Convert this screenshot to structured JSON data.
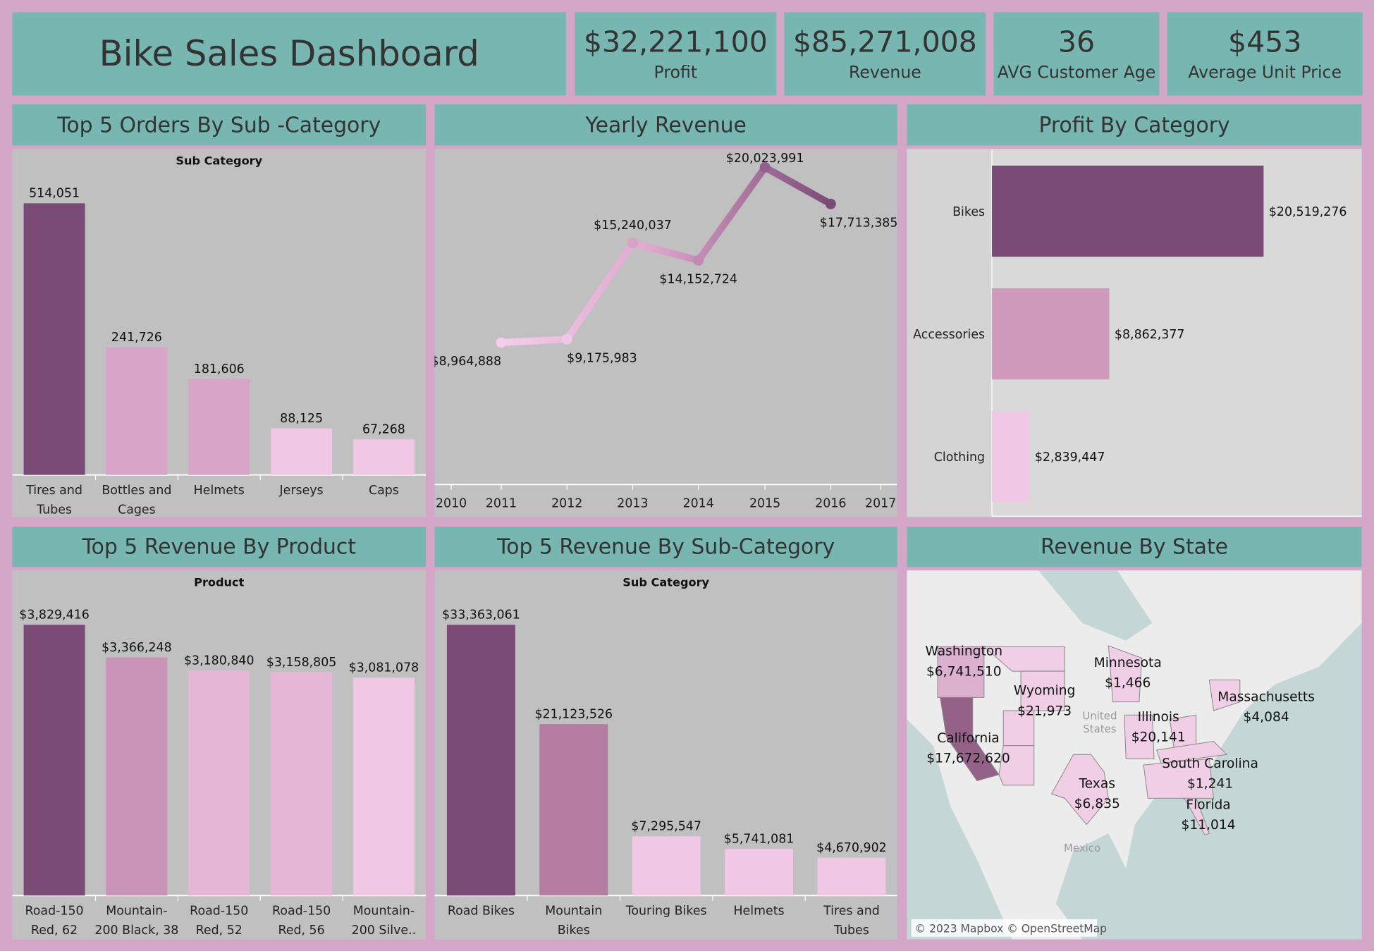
{
  "header": {
    "title": "Bike Sales Dashboard"
  },
  "kpis": [
    {
      "value": "$32,221,100",
      "label": "Profit"
    },
    {
      "value": "$85,271,008",
      "label": "Revenue"
    },
    {
      "value": "36",
      "label": "AVG Customer Age"
    },
    {
      "value": "$453",
      "label": "Average Unit Price"
    }
  ],
  "colors": {
    "background": "#d4a7c8",
    "header": "#78b7b1",
    "panel": "#c0c0c0",
    "dark": "#7b4b77"
  },
  "panels": {
    "orders": "Top 5 Orders By Sub -Category",
    "yearly": "Yearly Revenue",
    "profit": "Profit By Category",
    "product": "Top 5 Revenue By Product",
    "subcat": "Top 5 Revenue By Sub-Category",
    "state": "Revenue By State"
  },
  "chart_data": [
    {
      "id": "orders",
      "type": "bar",
      "header": "Sub Category",
      "categories": [
        [
          "Tires and",
          "Tubes"
        ],
        [
          "Bottles and",
          "Cages"
        ],
        [
          "Helmets"
        ],
        [
          "Jerseys"
        ],
        [
          "Caps"
        ]
      ],
      "values": [
        514051,
        241726,
        181606,
        88125,
        67268
      ],
      "labels": [
        "514,051",
        "241,726",
        "181,606",
        "88,125",
        "67,268"
      ],
      "colors": [
        "#7b4b77",
        "#d6a5c7",
        "#d6a5c7",
        "#f0c8e6",
        "#f0c8e6"
      ]
    },
    {
      "id": "yearly",
      "type": "line",
      "x": [
        2011,
        2012,
        2013,
        2014,
        2015,
        2016
      ],
      "values": [
        8964888,
        9175983,
        15240037,
        14152724,
        20023991,
        17713385
      ],
      "labels": [
        "$8,964,888",
        "$9,175,983",
        "$15,240,037",
        "$14,152,724",
        "$20,023,991",
        "$17,713,385"
      ],
      "xticks": [
        "2010",
        "2011",
        "2012",
        "2013",
        "2014",
        "2015",
        "2016",
        "2017"
      ]
    },
    {
      "id": "profit",
      "type": "bar",
      "orientation": "horizontal",
      "categories": [
        "Bikes",
        "Accessories",
        "Clothing"
      ],
      "values": [
        20519276,
        8862377,
        2839447
      ],
      "labels": [
        "$20,519,276",
        "$8,862,377",
        "$2,839,447"
      ],
      "colors": [
        "#7b4b77",
        "#cf9abb",
        "#f0c8e6"
      ]
    },
    {
      "id": "product",
      "type": "bar",
      "header": "Product",
      "categories": [
        [
          "Road-150",
          "Red, 62"
        ],
        [
          "Mountain-",
          "200 Black, 38"
        ],
        [
          "Road-150",
          "Red, 52"
        ],
        [
          "Road-150",
          "Red, 56"
        ],
        [
          "Mountain-",
          "200 Silve.."
        ]
      ],
      "values": [
        3829416,
        3366248,
        3180840,
        3158805,
        3081078
      ],
      "labels": [
        "$3,829,416",
        "$3,366,248",
        "$3,180,840",
        "$3,158,805",
        "$3,081,078"
      ],
      "colors": [
        "#7b4b77",
        "#c994b8",
        "#e6b6d6",
        "#e6b6d6",
        "#f0c8e6"
      ]
    },
    {
      "id": "subcat",
      "type": "bar",
      "header": "Sub Category",
      "categories": [
        [
          "Road Bikes"
        ],
        [
          "Mountain",
          "Bikes"
        ],
        [
          "Touring Bikes"
        ],
        [
          "Helmets"
        ],
        [
          "Tires and",
          "Tubes"
        ]
      ],
      "values": [
        33363061,
        21123526,
        7295547,
        5741081,
        4670902
      ],
      "labels": [
        "$33,363,061",
        "$21,123,526",
        "$7,295,547",
        "$5,741,081",
        "$4,670,902"
      ],
      "colors": [
        "#7b4b77",
        "#b57da2",
        "#f0c8e6",
        "#f0c8e6",
        "#f0c8e6"
      ]
    }
  ],
  "map": {
    "states": [
      {
        "name": "Washington",
        "value": "$6,741,510"
      },
      {
        "name": "California",
        "value": "$17,672,620"
      },
      {
        "name": "Wyoming",
        "value": "$21,973"
      },
      {
        "name": "Minnesota",
        "value": "$1,466"
      },
      {
        "name": "Illinois",
        "value": "$20,141"
      },
      {
        "name": "Massachusetts",
        "value": "$4,084"
      },
      {
        "name": "South Carolina",
        "value": "$1,241"
      },
      {
        "name": "Texas",
        "value": "$6,835"
      },
      {
        "name": "Florida",
        "value": "$11,014"
      }
    ],
    "country_labels": [
      "United",
      "States",
      "Mexico"
    ],
    "attribution": "© 2023 Mapbox © OpenStreetMap"
  }
}
